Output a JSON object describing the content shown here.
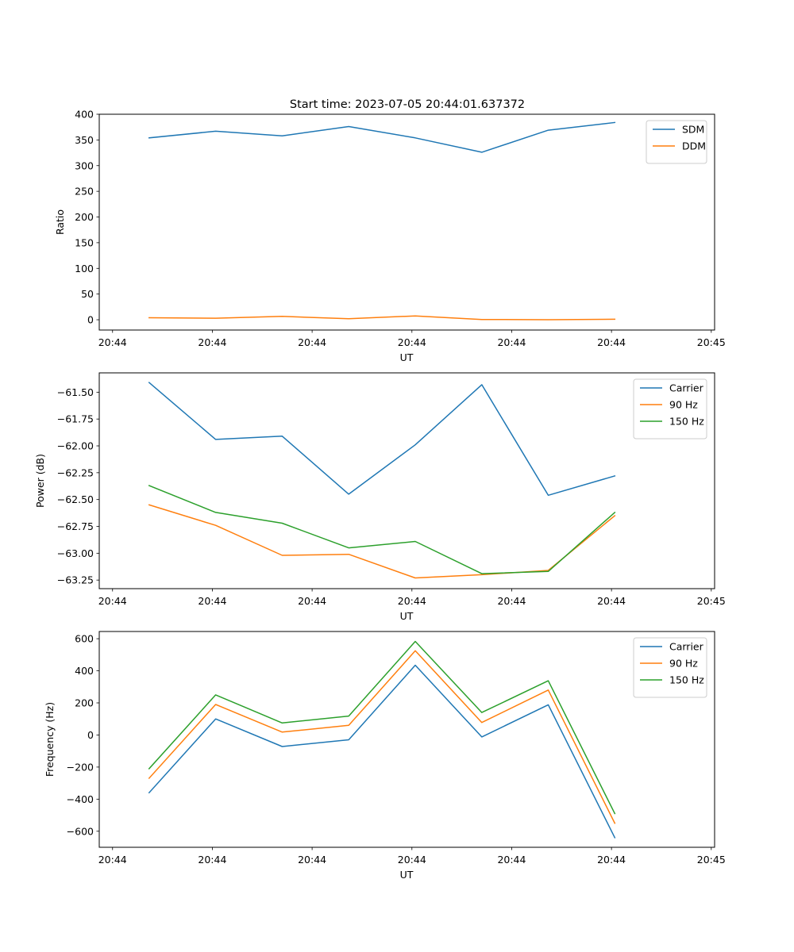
{
  "title": "Start time: 2023-07-05 20:44:01.637372",
  "colors": {
    "blue": "#1f77b4",
    "orange": "#ff7f0e",
    "green": "#2ca02c",
    "axis": "#000000"
  },
  "chart_data": [
    {
      "type": "line",
      "title": "Start time: 2023-07-05 20:44:01.637372",
      "xlabel": "UT",
      "ylabel": "Ratio",
      "xlim": [
        -0.75,
        8.5
      ],
      "ylim": [
        -20,
        400
      ],
      "yticks": [
        0,
        50,
        100,
        150,
        200,
        250,
        300,
        350,
        400
      ],
      "ytick_labels": [
        "0",
        "50",
        "100",
        "150",
        "200",
        "250",
        "300",
        "350",
        "400"
      ],
      "xticks": [
        -0.55,
        0.95,
        2.45,
        3.95,
        5.45,
        6.95,
        8.45
      ],
      "xtick_labels": [
        "20:44",
        "20:44",
        "20:44",
        "20:44",
        "20:44",
        "20:44",
        "20:45"
      ],
      "legend_loc": "upper right",
      "x": [
        0,
        1,
        2,
        3,
        4,
        5,
        6,
        7
      ],
      "series": [
        {
          "name": "SDM",
          "color": "#1f77b4",
          "values": [
            354,
            367,
            358,
            376,
            354,
            326,
            369,
            384
          ]
        },
        {
          "name": "DDM",
          "color": "#ff7f0e",
          "values": [
            4,
            3,
            6.5,
            2,
            7.5,
            0.5,
            0,
            1
          ]
        }
      ]
    },
    {
      "type": "line",
      "title": "",
      "xlabel": "UT",
      "ylabel": "Power (dB)",
      "xlim": [
        -0.75,
        8.5
      ],
      "ylim": [
        -63.33,
        -61.32
      ],
      "yticks": [
        -63.25,
        -63.0,
        -62.75,
        -62.5,
        -62.25,
        -62.0,
        -61.75,
        -61.5
      ],
      "ytick_labels": [
        "−63.25",
        "−63.00",
        "−62.75",
        "−62.50",
        "−62.25",
        "−62.00",
        "−61.75",
        "−61.50"
      ],
      "xticks": [
        -0.55,
        0.95,
        2.45,
        3.95,
        5.45,
        6.95,
        8.45
      ],
      "xtick_labels": [
        "20:44",
        "20:44",
        "20:44",
        "20:44",
        "20:44",
        "20:44",
        "20:45"
      ],
      "legend_loc": "upper right",
      "x": [
        0,
        1,
        2,
        3,
        4,
        5,
        6,
        7
      ],
      "series": [
        {
          "name": "Carrier",
          "color": "#1f77b4",
          "values": [
            -61.41,
            -61.94,
            -61.91,
            -62.45,
            -61.99,
            -61.43,
            -62.46,
            -62.28
          ]
        },
        {
          "name": "90 Hz",
          "color": "#ff7f0e",
          "values": [
            -62.55,
            -62.74,
            -63.02,
            -63.01,
            -63.23,
            -63.2,
            -63.16,
            -62.65
          ]
        },
        {
          "name": "150 Hz",
          "color": "#2ca02c",
          "values": [
            -62.37,
            -62.62,
            -62.72,
            -62.95,
            -62.89,
            -63.19,
            -63.17,
            -62.62
          ]
        }
      ]
    },
    {
      "type": "line",
      "title": "",
      "xlabel": "UT",
      "ylabel": "Frequency (Hz)",
      "xlim": [
        -0.75,
        8.5
      ],
      "ylim": [
        -700,
        645
      ],
      "yticks": [
        -600,
        -400,
        -200,
        0,
        200,
        400,
        600
      ],
      "ytick_labels": [
        "−600",
        "−400",
        "−200",
        "0",
        "200",
        "400",
        "600"
      ],
      "xticks": [
        -0.55,
        0.95,
        2.45,
        3.95,
        5.45,
        6.95,
        8.45
      ],
      "xtick_labels": [
        "20:44",
        "20:44",
        "20:44",
        "20:44",
        "20:44",
        "20:44",
        "20:45"
      ],
      "legend_loc": "upper right",
      "x": [
        0,
        1,
        2,
        3,
        4,
        5,
        6,
        7
      ],
      "series": [
        {
          "name": "Carrier",
          "color": "#1f77b4",
          "values": [
            -360,
            100,
            -72,
            -30,
            435,
            -12,
            188,
            -640
          ]
        },
        {
          "name": "90 Hz",
          "color": "#ff7f0e",
          "values": [
            -270,
            190,
            18,
            60,
            525,
            78,
            280,
            -550
          ]
        },
        {
          "name": "150 Hz",
          "color": "#2ca02c",
          "values": [
            -210,
            250,
            75,
            118,
            583,
            140,
            338,
            -490
          ]
        }
      ]
    }
  ]
}
